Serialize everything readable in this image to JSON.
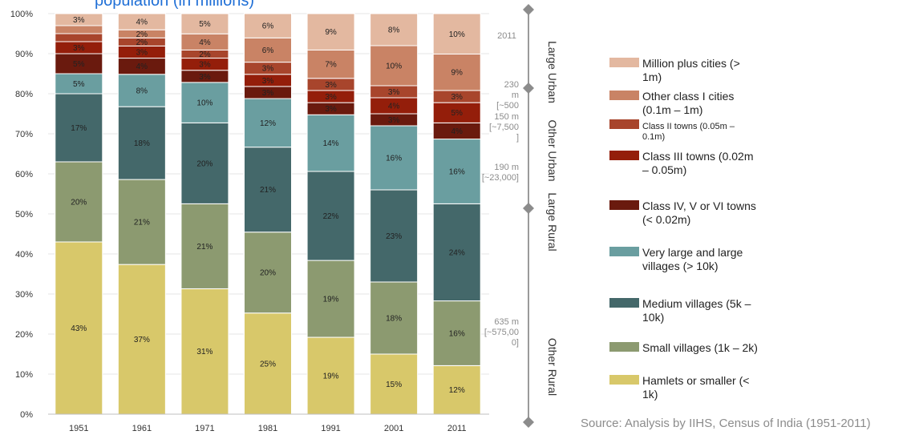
{
  "title_fragment": "population (in millions)",
  "source_note": "Source: Analysis by IIHS, Census of India (1951-2011)",
  "chart_data": {
    "type": "bar",
    "stacked": true,
    "normalized": true,
    "categories": [
      "1951",
      "1961",
      "1971",
      "1981",
      "1991",
      "2001",
      "2011"
    ],
    "ylim": [
      0,
      100
    ],
    "yticks": [
      "0%",
      "10%",
      "20%",
      "30%",
      "40%",
      "50%",
      "60%",
      "70%",
      "80%",
      "90%",
      "100%"
    ],
    "legend_position": "right",
    "series": [
      {
        "name": "Hamlets or smaller (< 1k)",
        "color": "#d8c86a",
        "values": [
          43,
          37,
          31,
          25,
          19,
          15,
          12
        ],
        "labels": [
          "43%",
          "37%",
          "31%",
          "25%",
          "19%",
          "15%",
          "12%"
        ]
      },
      {
        "name": "Small villages (1k – 2k)",
        "color": "#8c9a70",
        "values": [
          20,
          21,
          21,
          20,
          19,
          18,
          16
        ],
        "labels": [
          "20%",
          "21%",
          "21%",
          "20%",
          "19%",
          "18%",
          "16%"
        ]
      },
      {
        "name": "Medium villages (5k – 10k)",
        "color": "#44686a",
        "values": [
          17,
          18,
          20,
          21,
          22,
          23,
          24
        ],
        "labels": [
          "17%",
          "18%",
          "20%",
          "21%",
          "22%",
          "23%",
          "24%"
        ]
      },
      {
        "name": "Very large and large villages (> 10k)",
        "color": "#6a9ea0",
        "values": [
          5,
          8,
          10,
          12,
          14,
          16,
          16
        ],
        "labels": [
          "5%",
          "8%",
          "10%",
          "12%",
          "14%",
          "16%",
          "16%"
        ]
      },
      {
        "name": "Class IV, V or VI towns (< 0.02m)",
        "color": "#6a1a0e",
        "values": [
          5,
          4,
          3,
          3,
          3,
          3,
          4
        ],
        "labels": [
          "5%",
          "4%",
          "3%",
          "3%",
          "3%",
          "3%",
          "4%"
        ]
      },
      {
        "name": "Class III towns (0.02m – 0.05m)",
        "color": "#941e0a",
        "values": [
          3,
          3,
          3,
          3,
          3,
          4,
          5
        ],
        "labels": [
          "3%",
          "3%",
          "3%",
          "3%",
          "3%",
          "4%",
          "5%"
        ]
      },
      {
        "name": "Class II towns (0.05m – 0.1m)",
        "color": "#a8452c",
        "values": [
          2,
          2,
          2,
          3,
          3,
          3,
          3
        ],
        "labels": [
          "",
          "2%",
          "2%",
          "3%",
          "3%",
          "3%",
          "3%"
        ]
      },
      {
        "name": "Other class I cities (0.1m – 1m)",
        "color": "#c98365",
        "values": [
          2,
          2,
          4,
          6,
          7,
          10,
          9
        ],
        "labels": [
          "",
          "2%",
          "4%",
          "6%",
          "7%",
          "10%",
          "9%"
        ]
      },
      {
        "name": "Million plus cities (> 1m)",
        "color": "#e3b8a0",
        "values": [
          3,
          4,
          5,
          6,
          9,
          8,
          10
        ],
        "labels": [
          "3%",
          "4%",
          "5%",
          "6%",
          "9%",
          "8%",
          "10%"
        ]
      }
    ],
    "legend": [
      {
        "lines": [
          "Million plus cities (>",
          "1m)"
        ],
        "color": "#e3b8a0",
        "small": false
      },
      {
        "lines": [
          "Other class I cities",
          "(0.1m – 1m)"
        ],
        "color": "#c98365",
        "small": false
      },
      {
        "lines": [
          "Class II towns (0.05m –",
          "0.1m)"
        ],
        "color": "#a8452c",
        "small": true
      },
      {
        "lines": [
          "Class III towns (0.02m",
          "– 0.05m)"
        ],
        "color": "#941e0a",
        "small": false
      },
      {
        "lines": [
          "Class IV, V or VI towns",
          "(< 0.02m)"
        ],
        "color": "#6a1a0e",
        "small": false
      },
      {
        "lines": [
          "Very large and large",
          "villages (> 10k)"
        ],
        "color": "#6a9ea0",
        "small": false
      },
      {
        "lines": [
          "Medium villages (5k –",
          "10k)"
        ],
        "color": "#44686a",
        "small": false
      },
      {
        "lines": [
          "Small villages (1k – 2k)"
        ],
        "color": "#8c9a70",
        "small": false
      },
      {
        "lines": [
          "Hamlets or smaller (<",
          "1k)"
        ],
        "color": "#d8c86a",
        "small": false
      }
    ],
    "bands": [
      "Large Urban",
      "Other Urban",
      "Large Rural",
      "Other Rural"
    ],
    "annotations": {
      "year_2011": "2011",
      "large_urban": [
        "230",
        "m",
        "[~500"
      ],
      "other_urban": [
        "150 m",
        "[~7,500",
        "]"
      ],
      "large_rural": [
        "190 m",
        "[~23,000]"
      ],
      "other_rural": [
        "635 m",
        "[~575,00",
        "0]"
      ]
    }
  }
}
